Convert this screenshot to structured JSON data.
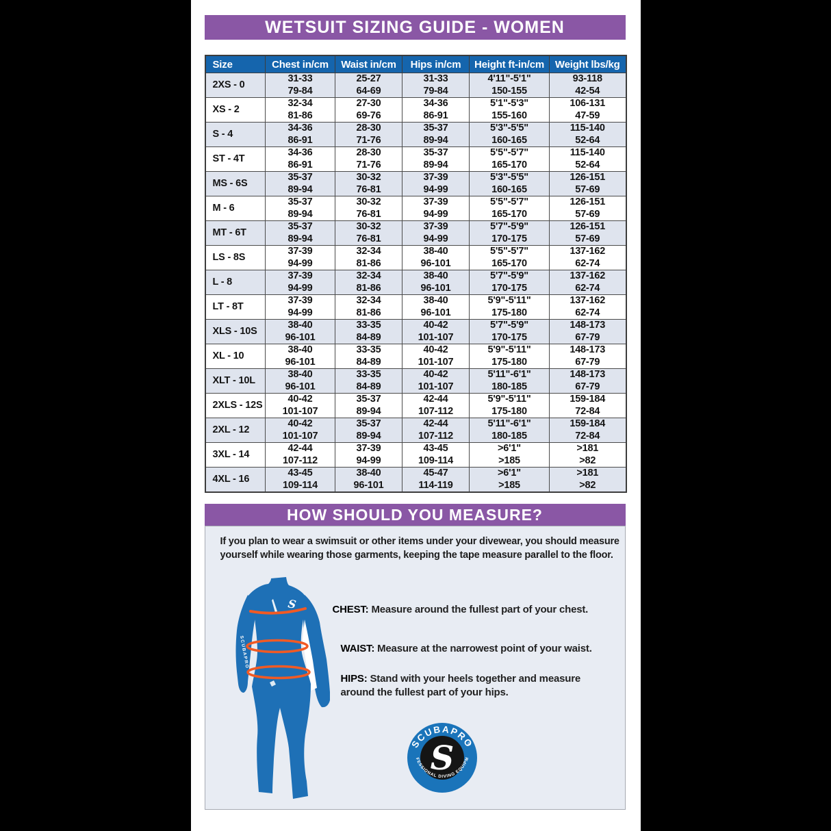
{
  "banners": {
    "sizing_title": "WETSUIT SIZING GUIDE - WOMEN",
    "measure_title": "HOW SHOULD YOU MEASURE?"
  },
  "table": {
    "headers": [
      "Size",
      "Chest in/cm",
      "Waist in/cm",
      "Hips in/cm",
      "Height ft-in/cm",
      "Weight lbs/kg"
    ],
    "rows": [
      {
        "size": "2XS - 0",
        "cols": [
          [
            "31-33",
            "79-84"
          ],
          [
            "25-27",
            "64-69"
          ],
          [
            "31-33",
            "79-84"
          ],
          [
            "4'11\"-5'1\"",
            "150-155"
          ],
          [
            "93-118",
            "42-54"
          ]
        ]
      },
      {
        "size": "XS - 2",
        "cols": [
          [
            "32-34",
            "81-86"
          ],
          [
            "27-30",
            "69-76"
          ],
          [
            "34-36",
            "86-91"
          ],
          [
            "5'1\"-5'3\"",
            "155-160"
          ],
          [
            "106-131",
            "47-59"
          ]
        ]
      },
      {
        "size": "S - 4",
        "cols": [
          [
            "34-36",
            "86-91"
          ],
          [
            "28-30",
            "71-76"
          ],
          [
            "35-37",
            "89-94"
          ],
          [
            "5'3\"-5'5\"",
            "160-165"
          ],
          [
            "115-140",
            "52-64"
          ]
        ]
      },
      {
        "size": "ST - 4T",
        "cols": [
          [
            "34-36",
            "86-91"
          ],
          [
            "28-30",
            "71-76"
          ],
          [
            "35-37",
            "89-94"
          ],
          [
            "5'5\"-5'7\"",
            "165-170"
          ],
          [
            "115-140",
            "52-64"
          ]
        ]
      },
      {
        "size": "MS - 6S",
        "cols": [
          [
            "35-37",
            "89-94"
          ],
          [
            "30-32",
            "76-81"
          ],
          [
            "37-39",
            "94-99"
          ],
          [
            "5'3\"-5'5\"",
            "160-165"
          ],
          [
            "126-151",
            "57-69"
          ]
        ]
      },
      {
        "size": "M - 6",
        "cols": [
          [
            "35-37",
            "89-94"
          ],
          [
            "30-32",
            "76-81"
          ],
          [
            "37-39",
            "94-99"
          ],
          [
            "5'5\"-5'7\"",
            "165-170"
          ],
          [
            "126-151",
            "57-69"
          ]
        ]
      },
      {
        "size": "MT - 6T",
        "cols": [
          [
            "35-37",
            "89-94"
          ],
          [
            "30-32",
            "76-81"
          ],
          [
            "37-39",
            "94-99"
          ],
          [
            "5'7\"-5'9\"",
            "170-175"
          ],
          [
            "126-151",
            "57-69"
          ]
        ]
      },
      {
        "size": "LS - 8S",
        "cols": [
          [
            "37-39",
            "94-99"
          ],
          [
            "32-34",
            "81-86"
          ],
          [
            "38-40",
            "96-101"
          ],
          [
            "5'5\"-5'7\"",
            "165-170"
          ],
          [
            "137-162",
            "62-74"
          ]
        ]
      },
      {
        "size": "L - 8",
        "cols": [
          [
            "37-39",
            "94-99"
          ],
          [
            "32-34",
            "81-86"
          ],
          [
            "38-40",
            "96-101"
          ],
          [
            "5'7\"-5'9\"",
            "170-175"
          ],
          [
            "137-162",
            "62-74"
          ]
        ]
      },
      {
        "size": "LT - 8T",
        "cols": [
          [
            "37-39",
            "94-99"
          ],
          [
            "32-34",
            "81-86"
          ],
          [
            "38-40",
            "96-101"
          ],
          [
            "5'9\"-5'11\"",
            "175-180"
          ],
          [
            "137-162",
            "62-74"
          ]
        ]
      },
      {
        "size": "XLS - 10S",
        "cols": [
          [
            "38-40",
            "96-101"
          ],
          [
            "33-35",
            "84-89"
          ],
          [
            "40-42",
            "101-107"
          ],
          [
            "5'7\"-5'9\"",
            "170-175"
          ],
          [
            "148-173",
            "67-79"
          ]
        ]
      },
      {
        "size": "XL - 10",
        "cols": [
          [
            "38-40",
            "96-101"
          ],
          [
            "33-35",
            "84-89"
          ],
          [
            "40-42",
            "101-107"
          ],
          [
            "5'9\"-5'11\"",
            "175-180"
          ],
          [
            "148-173",
            "67-79"
          ]
        ]
      },
      {
        "size": "XLT - 10L",
        "cols": [
          [
            "38-40",
            "96-101"
          ],
          [
            "33-35",
            "84-89"
          ],
          [
            "40-42",
            "101-107"
          ],
          [
            "5'11\"-6'1\"",
            "180-185"
          ],
          [
            "148-173",
            "67-79"
          ]
        ]
      },
      {
        "size": "2XLS - 12S",
        "cols": [
          [
            "40-42",
            "101-107"
          ],
          [
            "35-37",
            "89-94"
          ],
          [
            "42-44",
            "107-112"
          ],
          [
            "5'9\"-5'11\"",
            "175-180"
          ],
          [
            "159-184",
            "72-84"
          ]
        ]
      },
      {
        "size": "2XL - 12",
        "cols": [
          [
            "40-42",
            "101-107"
          ],
          [
            "35-37",
            "89-94"
          ],
          [
            "42-44",
            "107-112"
          ],
          [
            "5'11\"-6'1\"",
            "180-185"
          ],
          [
            "159-184",
            "72-84"
          ]
        ]
      },
      {
        "size": "3XL - 14",
        "cols": [
          [
            "42-44",
            "107-112"
          ],
          [
            "37-39",
            "94-99"
          ],
          [
            "43-45",
            "109-114"
          ],
          [
            ">6'1\"",
            ">185"
          ],
          [
            ">181",
            ">82"
          ]
        ]
      },
      {
        "size": "4XL - 16",
        "cols": [
          [
            "43-45",
            "109-114"
          ],
          [
            "38-40",
            "96-101"
          ],
          [
            "45-47",
            "114-119"
          ],
          [
            ">6'1\"",
            ">185"
          ],
          [
            ">181",
            ">82"
          ]
        ]
      }
    ]
  },
  "measure_section": {
    "intro": "If you plan to wear a swimsuit or other items under your divewear, you should measure yourself while wearing those garments, keeping the tape measure parallel to the floor.",
    "items": [
      {
        "label": "CHEST:",
        "text": "Measure around the fullest part of your chest."
      },
      {
        "label": "WAIST:",
        "text": "Measure at the narrowest point of your waist."
      },
      {
        "label": "HIPS:",
        "text": "Stand with your heels together and measure around the fullest part of your hips."
      }
    ]
  },
  "figure": {
    "chest_logo": "S",
    "sleeve_text": "SCUBAPRO"
  },
  "logo": {
    "brand": "SCUBAPRO",
    "registered": "®",
    "tagline": "PROFESSIONAL DIVING EQUIPMENT",
    "monogram": "S"
  },
  "colors": {
    "banner_purple": "#8a57a5",
    "header_blue": "#1565ad",
    "row_alt": "#dfe4ee",
    "suit_blue": "#1e70b6",
    "measure_orange": "#f15a24",
    "panel_bg": "#e8ecf3",
    "logo_ring_blue": "#1a74ba",
    "side_bars": "#000000"
  }
}
